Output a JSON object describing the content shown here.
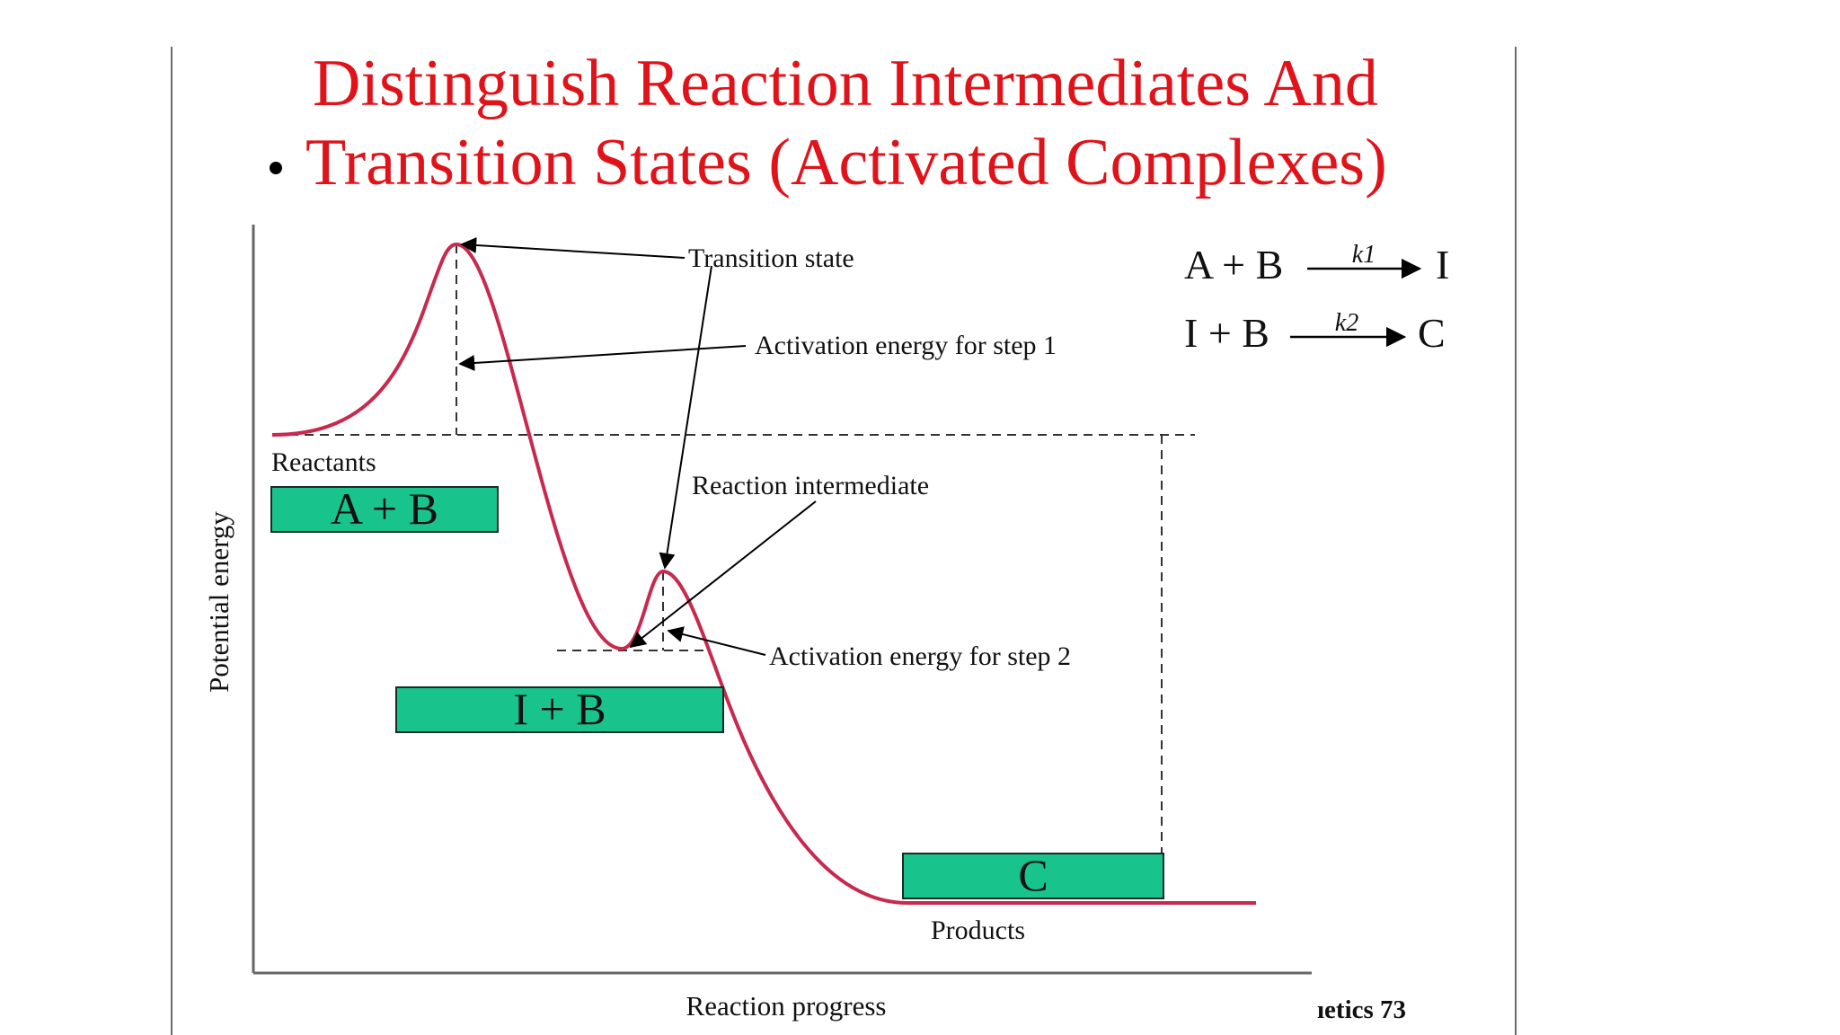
{
  "slide": {
    "title_line1": "Distinguish Reaction Intermediates And",
    "title_line2": "Transition States (Activated Complexes)",
    "footer_text": "ıetics 73"
  },
  "diagram": {
    "axis_y_label": "Potential energy",
    "axis_x_label": "Reaction progress",
    "labels": {
      "transition_state": "Transition state",
      "activation_energy_step1": "Activation energy for step 1",
      "reaction_intermediate": "Reaction intermediate",
      "activation_energy_step2": "Activation energy for step 2",
      "reactants": "Reactants",
      "products": "Products"
    },
    "boxes": {
      "reactants": "A + B",
      "intermediate": "I + B",
      "products": "C"
    },
    "equations": [
      {
        "left": "A + B",
        "rate": "k1",
        "right": "I"
      },
      {
        "left": "I + B",
        "rate": "k2",
        "right": "C"
      }
    ],
    "colors": {
      "curve": "#c8294f",
      "box_fill": "#19c48c",
      "title": "#e0131a"
    }
  }
}
